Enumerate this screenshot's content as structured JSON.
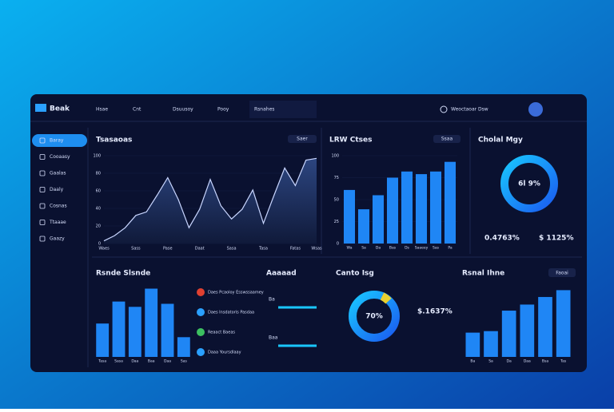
{
  "nav": {
    "logo": "Beak",
    "items": [
      "Hsae",
      "Cnt",
      "Dsuusoy",
      "Pooy",
      "Rsnahes"
    ],
    "search": "Weoctaoar Dsw"
  },
  "sidebar": [
    "Baray",
    "Cooaasy",
    "Gaalas",
    "Daaly",
    "Cosnas",
    "Ttaaae",
    "Gaazy"
  ],
  "buttons": [
    "Saer",
    "Ssaa",
    "Faoai"
  ],
  "gauge1": {
    "title": "Cholal Mgy",
    "center": "6l 9%",
    "stats": [
      "0.4763%",
      "$ 1125%"
    ]
  },
  "gauge2": {
    "title": "Canto Isg",
    "center": "70%",
    "stat": "$.1637%"
  },
  "activity": {
    "title": "Aaaaad",
    "items": [
      "Daes Pcaoloy Esswssaamey",
      "Daes Insdatoris Pasdaa",
      "Reaact Baeas",
      "Daaa Yoursdlaay"
    ],
    "progress": [
      "Ba",
      "Baa"
    ]
  },
  "chart_data": [
    {
      "type": "line",
      "title": "Tsasaoas",
      "color": "#c9d6ff",
      "categories": [
        "Waes",
        null,
        null,
        "Sass",
        null,
        null,
        "Pase",
        null,
        null,
        "Daat",
        null,
        null,
        "Sasa",
        null,
        null,
        "Tasa",
        null,
        null,
        "Fatas",
        null,
        "Wsas"
      ],
      "values": [
        3,
        9,
        18,
        32,
        36,
        55,
        75,
        50,
        18,
        39,
        73,
        43,
        28,
        39,
        61,
        23,
        55,
        86,
        66,
        95,
        97
      ],
      "ylim": [
        0,
        100
      ],
      "yticks": [
        0,
        20,
        40,
        60,
        80,
        100
      ]
    },
    {
      "type": "bar",
      "title": "LRW Ctses",
      "color": "#1f86f5",
      "categories": [
        "Wa",
        "Sa",
        "Da",
        "Bas",
        "Ds",
        "Saaeey",
        "Sas",
        "Pa"
      ],
      "values": [
        61,
        39,
        55,
        75,
        82,
        79,
        82,
        93
      ],
      "ylim": [
        0,
        100
      ],
      "yticks": [
        0,
        25,
        50,
        75,
        100
      ]
    },
    {
      "type": "bar",
      "title": "Rsnde Slsnde",
      "color": "#1f86f5",
      "categories": [
        "Tasa",
        "Sasa",
        "Daa",
        "Baa",
        "Daa",
        "Sas"
      ],
      "values": [
        44,
        73,
        66,
        90,
        70,
        26
      ],
      "ylim": [
        0,
        100
      ]
    },
    {
      "type": "bar",
      "title": "Rsnal Ihne",
      "color": "#1f86f5",
      "categories": [
        "Ba",
        "Sa",
        "Da",
        "Daa",
        "Bsa",
        "Tas"
      ],
      "values": [
        32,
        34,
        61,
        69,
        79,
        88
      ],
      "ylim": [
        0,
        100
      ]
    }
  ]
}
